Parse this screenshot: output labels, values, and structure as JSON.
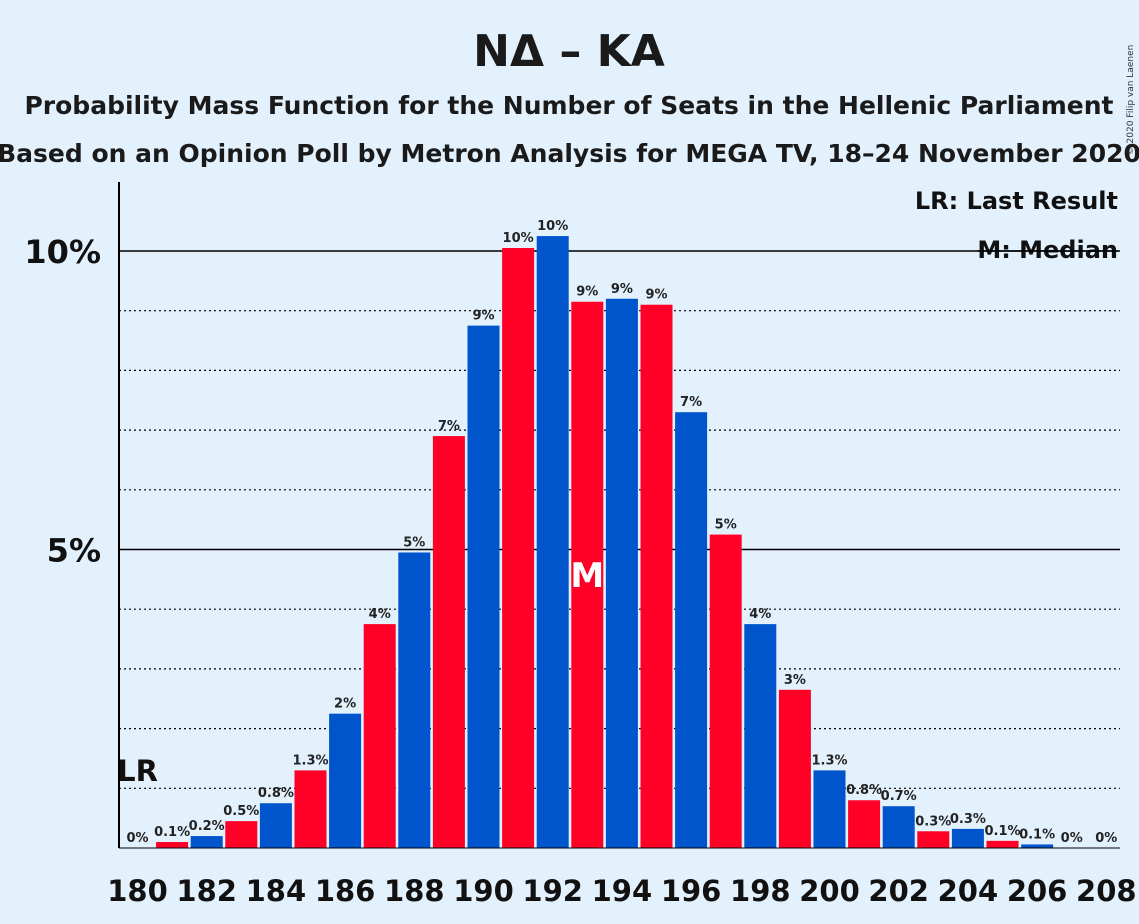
{
  "chart_data": {
    "type": "bar",
    "title": "ΝΔ – ΚΑ",
    "subtitle1": "Probability Mass Function for the Number of Seats in the Hellenic Parliament",
    "subtitle2": "Based on an Opinion Poll by Metron Analysis for MEGA TV, 18–24 November 2020",
    "copyright": "© 2020 Filip van Laenen",
    "x": [
      180,
      181,
      182,
      183,
      184,
      185,
      186,
      187,
      188,
      189,
      190,
      191,
      192,
      193,
      194,
      195,
      196,
      197,
      198,
      199,
      200,
      201,
      202,
      203,
      204,
      205,
      206,
      207,
      208
    ],
    "values": [
      0.0,
      0.1,
      0.2,
      0.45,
      0.75,
      1.3,
      2.25,
      3.75,
      4.95,
      6.9,
      8.75,
      10.05,
      10.25,
      9.15,
      9.2,
      9.1,
      7.3,
      5.25,
      3.75,
      2.65,
      1.3,
      0.8,
      0.7,
      0.28,
      0.32,
      0.12,
      0.06,
      0.0,
      0.0
    ],
    "bar_labels": [
      "0%",
      "0.1%",
      "0.2%",
      "0.5%",
      "0.8%",
      "1.3%",
      "2%",
      "4%",
      "5%",
      "7%",
      "9%",
      "10%",
      "10%",
      "9%",
      "9%",
      "9%",
      "7%",
      "5%",
      "4%",
      "3%",
      "1.3%",
      "0.8%",
      "0.7%",
      "0.3%",
      "0.3%",
      "0.1%",
      "0.1%",
      "0%",
      "0%"
    ],
    "x_ticks": [
      "180",
      "182",
      "184",
      "186",
      "188",
      "190",
      "192",
      "194",
      "196",
      "198",
      "200",
      "202",
      "204",
      "206",
      "208"
    ],
    "y_ticks": [
      {
        "value": 5,
        "label": "5%"
      },
      {
        "value": 10,
        "label": "10%"
      }
    ],
    "ylim": [
      0,
      11
    ],
    "colors": {
      "odd": "#ff0026",
      "even": "#0055cc",
      "background": "#e3f1fd"
    },
    "last_result": {
      "x": 180,
      "label": "LR"
    },
    "median": {
      "x": 193,
      "label": "M"
    },
    "legend": {
      "lr": "LR: Last Result",
      "m": "M: Median",
      "placement": "top-right"
    }
  }
}
